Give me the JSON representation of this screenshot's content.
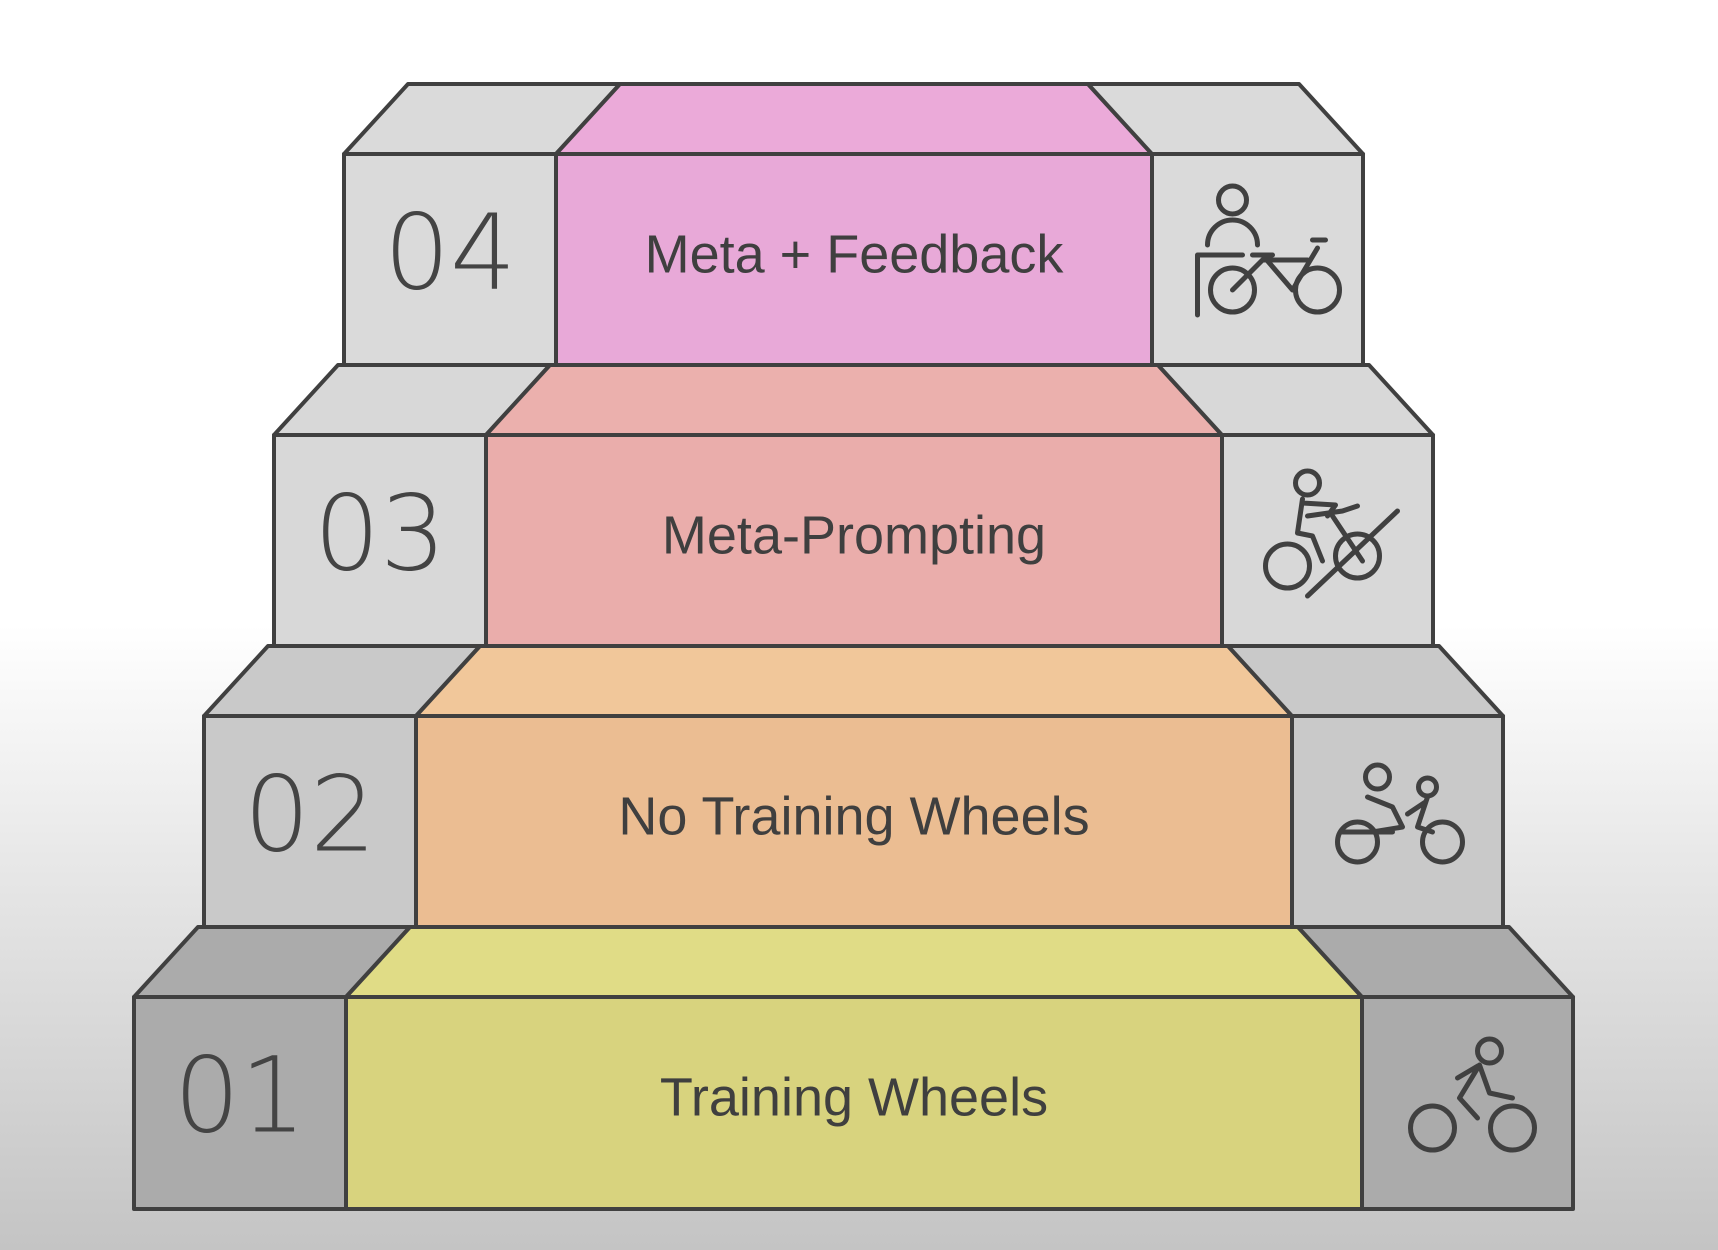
{
  "steps": [
    {
      "number": "01",
      "label": "Training Wheels",
      "icon": "cyclist-icon",
      "color": "#d8d37e",
      "top_color": "#e0dc86",
      "box_color": "#ababab"
    },
    {
      "number": "02",
      "label": "No Training Wheels",
      "icon": "cyclist-with-helper-icon",
      "color": "#ebbd92",
      "top_color": "#f1c79a",
      "box_color": "#c9c9c9"
    },
    {
      "number": "03",
      "label": "Meta-Prompting",
      "icon": "uphill-cyclist-icon",
      "color": "#eaadab",
      "top_color": "#ebb0ad",
      "box_color": "#d8d8d8"
    },
    {
      "number": "04",
      "label": "Meta + Feedback",
      "icon": "person-with-bicycle-icon",
      "color": "#e8a9d8",
      "top_color": "#ebaad9",
      "box_color": "#dadada"
    }
  ],
  "stroke_color": "#404040"
}
